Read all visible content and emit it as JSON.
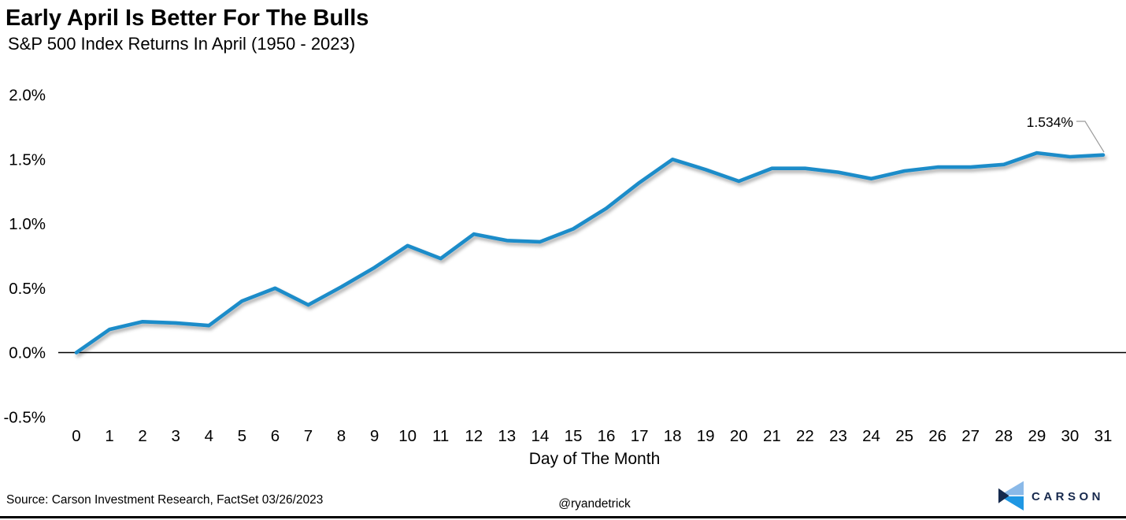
{
  "header": {
    "title": "Early April Is Better For The Bulls",
    "subtitle": "S&P 500 Index Returns In April (1950 - 2023)"
  },
  "chart_data": {
    "type": "line",
    "title": "Early April Is Better For The Bulls",
    "subtitle": "S&P 500 Index Returns In April (1950 - 2023)",
    "xlabel": "Day of The Month",
    "ylabel": "",
    "unit": "%",
    "x": [
      0,
      1,
      2,
      3,
      4,
      5,
      6,
      7,
      8,
      9,
      10,
      11,
      12,
      13,
      14,
      15,
      16,
      17,
      18,
      19,
      20,
      21,
      22,
      23,
      24,
      25,
      26,
      27,
      28,
      29,
      30,
      31
    ],
    "values": [
      0.0,
      0.18,
      0.24,
      0.23,
      0.21,
      0.4,
      0.5,
      0.37,
      0.51,
      0.66,
      0.83,
      0.73,
      0.92,
      0.87,
      0.86,
      0.96,
      1.12,
      1.32,
      1.5,
      1.42,
      1.33,
      1.43,
      1.43,
      1.4,
      1.35,
      1.41,
      1.44,
      1.44,
      1.46,
      1.55,
      1.52,
      1.534
    ],
    "y_ticks": [
      2.0,
      1.5,
      1.0,
      0.5,
      0.0,
      -0.5
    ],
    "y_tick_labels": [
      "2.0%",
      "1.5%",
      "1.0%",
      "0.5%",
      "0.0%",
      "-0.5%"
    ],
    "xlim": [
      0,
      31
    ],
    "ylim": [
      -0.5,
      2.0
    ],
    "grid": false,
    "legend": false,
    "line_color": "#1e8cc9",
    "axis_color": "#000000",
    "annotation": {
      "text": "1.534%",
      "x": 31,
      "y": 1.534,
      "leader_color": "#9b9b9b"
    }
  },
  "footer": {
    "source": "Source: Carson Investment Research, FactSet 03/26/2023",
    "handle": "@ryandetrick",
    "logo_text": "CARSON"
  },
  "colors": {
    "logo_light": "#8ab9e8",
    "logo_blue": "#1f97e3",
    "logo_navy": "#152a4e",
    "wordmark": "#17294d"
  }
}
